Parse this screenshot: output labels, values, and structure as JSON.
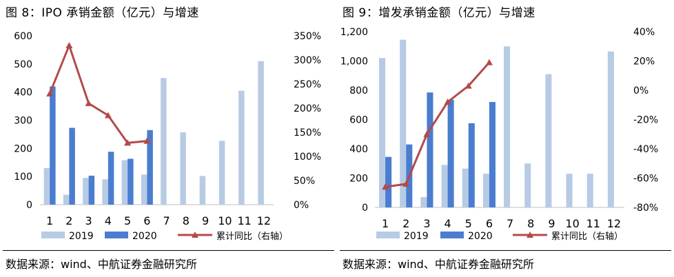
{
  "colors": {
    "s2019": "#b7cbe5",
    "s2020": "#4a7dcf",
    "line": "#b34a4a"
  },
  "panels": [
    {
      "title": "图 8：IPO 承销金额（亿元）与增速",
      "source": "数据来源：wind、中航证券金融研究所"
    },
    {
      "title": "图 9：增发承销金额（亿元）与增速",
      "source": "数据来源：wind、中航证券金融研究所"
    }
  ],
  "chart_data": [
    {
      "type": "bar",
      "categories": [
        "1",
        "2",
        "3",
        "4",
        "5",
        "6",
        "7",
        "8",
        "9",
        "10",
        "11",
        "12"
      ],
      "series": [
        {
          "name": "2019",
          "axis": "left",
          "kind": "bar",
          "values": [
            130,
            35,
            95,
            90,
            158,
            107,
            450,
            257,
            102,
            227,
            405,
            510
          ]
        },
        {
          "name": "2020",
          "axis": "left",
          "kind": "bar",
          "values": [
            420,
            273,
            103,
            188,
            163,
            265,
            null,
            null,
            null,
            null,
            null,
            null
          ]
        },
        {
          "name": "累计同比（右轴）",
          "axis": "right",
          "kind": "line",
          "values": [
            230,
            330,
            210,
            185,
            128,
            132,
            null,
            null,
            null,
            null,
            null,
            null
          ]
        }
      ],
      "y_left": {
        "min": 0,
        "max": 600,
        "ticks": [
          0,
          100,
          200,
          300,
          400,
          500,
          600
        ],
        "labels": [
          "0",
          "100",
          "200",
          "300",
          "400",
          "500",
          "600"
        ]
      },
      "y_right": {
        "min": 0,
        "max": 350,
        "ticks": [
          0,
          50,
          100,
          150,
          200,
          250,
          300,
          350
        ],
        "labels": [
          "0%",
          "50%",
          "100%",
          "150%",
          "200%",
          "250%",
          "300%",
          "350%"
        ]
      },
      "legend": "bottom",
      "grid": false
    },
    {
      "type": "bar",
      "categories": [
        "1",
        "2",
        "3",
        "4",
        "5",
        "6",
        "7",
        "8",
        "9",
        "10",
        "11",
        "12"
      ],
      "series": [
        {
          "name": "2019",
          "axis": "left",
          "kind": "bar",
          "values": [
            1020,
            1145,
            70,
            290,
            265,
            230,
            1100,
            300,
            910,
            230,
            230,
            1065
          ]
        },
        {
          "name": "2020",
          "axis": "left",
          "kind": "bar",
          "values": [
            345,
            430,
            785,
            735,
            575,
            720,
            null,
            null,
            null,
            null,
            null,
            null
          ]
        },
        {
          "name": "累计同比（右轴）",
          "axis": "right",
          "kind": "line",
          "values": [
            -66,
            -64,
            -30,
            -8,
            3,
            19,
            null,
            null,
            null,
            null,
            null,
            null
          ]
        }
      ],
      "y_left": {
        "min": 0,
        "max": 1200,
        "ticks": [
          0,
          200,
          400,
          600,
          800,
          1000,
          1200
        ],
        "labels": [
          "0",
          "200",
          "400",
          "600",
          "800",
          "1,000",
          "1,200"
        ]
      },
      "y_right": {
        "min": -80,
        "max": 40,
        "ticks": [
          -80,
          -60,
          -40,
          -20,
          0,
          20,
          40
        ],
        "labels": [
          "-80%",
          "-60%",
          "-40%",
          "-20%",
          "0%",
          "20%",
          "40%"
        ]
      },
      "legend": "bottom",
      "grid": false
    }
  ]
}
